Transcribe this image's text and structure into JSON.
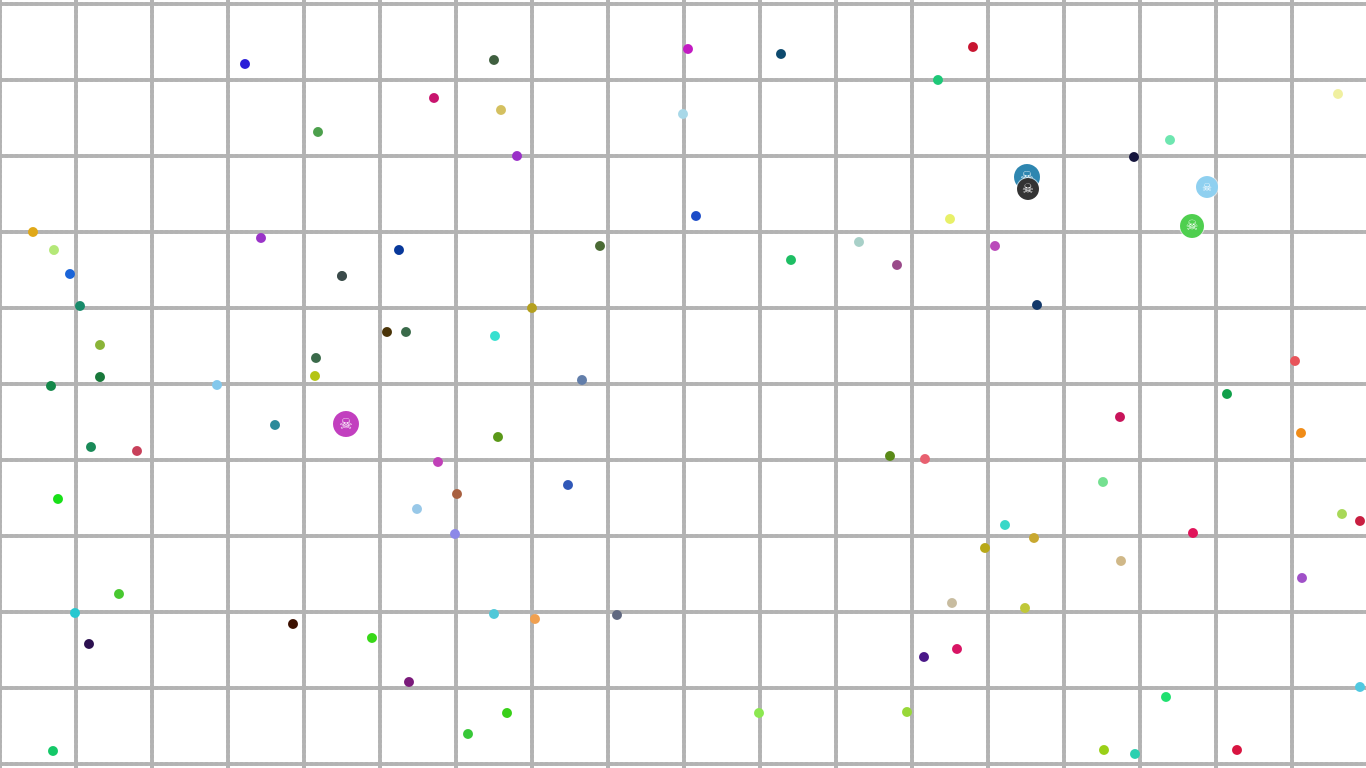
{
  "game": {
    "background": "#ffffff",
    "grid_line_color": "#b3b3b3"
  },
  "players": [
    {
      "name": "skull-blob-magenta",
      "color": "#c23fbf",
      "icon": "skull-crossbones-icon",
      "glyph": "☠"
    },
    {
      "name": "skull-blob-teal",
      "color": "#2e86b0",
      "icon": "skull-crossbones-icon",
      "glyph": "☠"
    },
    {
      "name": "skull-blob-dark",
      "color": "#333333",
      "icon": "skull-crossbones-icon",
      "glyph": "☠"
    },
    {
      "name": "skull-blob-lightblue",
      "color": "#8fd0f0",
      "icon": "skull-crossbones-icon",
      "glyph": "☠"
    },
    {
      "name": "skull-blob-green",
      "color": "#4fcf4f",
      "icon": "skull-crossbones-icon",
      "glyph": "☠"
    }
  ],
  "pellets": {
    "colors": [
      "#2a1ed8",
      "#3f5f3f",
      "#c21bc2",
      "#0d4a6e",
      "#c81430",
      "#1ec878",
      "#c8146e",
      "#d4c060",
      "#a8d8e8",
      "#f0f0a0",
      "#4ca04c",
      "#9a30c8",
      "#6ee6b0",
      "#14143c",
      "#e0a818",
      "#b4e878",
      "#9a34c8",
      "#08389a",
      "#4a6a34",
      "#1ebe64",
      "#a8d0c8",
      "#1c4cc8",
      "#e8f068",
      "#ba4aba",
      "#3c643c",
      "#9a4a8a",
      "#1a64d8",
      "#188a6a",
      "#3a4a4a",
      "#b4a020",
      "#12386a",
      "#4a3408",
      "#3a6a4a",
      "#38e0d0",
      "#8ab438",
      "#3a6a4a",
      "#b4c414",
      "#18783a",
      "#14884a",
      "#84c8ec",
      "#627eaa",
      "#e8545a",
      "#10a04a",
      "#2a8a9a",
      "#c8145a",
      "#1a8a58",
      "#c8405a",
      "#5a9818",
      "#e86070",
      "#f08c18",
      "#c040b8",
      "#5a8a18",
      "#a86040",
      "#3058b8",
      "#74e090",
      "#98c8e8",
      "#18e018",
      "#8c88e8",
      "#38d8c8",
      "#b8a818",
      "#c8a830",
      "#a8d858",
      "#e0145a",
      "#c81e40",
      "#d0b888",
      "#a050c8",
      "#28c8d0",
      "#50c8d8",
      "#f0a050",
      "#606880",
      "#c8bca0",
      "#c0c838",
      "#3c1000",
      "#38d818",
      "#2c1050",
      "#d81464",
      "#4a1888",
      "#7a1a7a",
      "#38d018",
      "#8ce850",
      "#98d838",
      "#20e070",
      "#9ad018",
      "#38c838",
      "#14c868",
      "#2ad0b0",
      "#d81440",
      "#50c8e0",
      "#48c830"
    ],
    "count": 89
  }
}
